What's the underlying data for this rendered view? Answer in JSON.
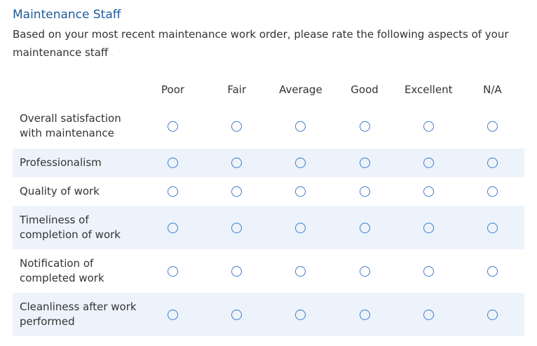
{
  "question": {
    "title": "Maintenance Staff",
    "intro": "Based on your most recent maintenance work order, please rate the following aspects of your maintenance staff",
    "intro_mark": "."
  },
  "columns": [
    "Poor",
    "Fair",
    "Average",
    "Good",
    "Excellent",
    "N/A"
  ],
  "rows": [
    {
      "label": "Overall satisfaction with maintenance"
    },
    {
      "label": "Professionalism"
    },
    {
      "label": "Quality of work"
    },
    {
      "label": "Timeliness of completion of work"
    },
    {
      "label": "Notification of completed work"
    },
    {
      "label": "Cleanliness after work performed"
    }
  ],
  "colors": {
    "title": "#1f5a99",
    "radio_border": "#3f7bc4",
    "alt_row": "#edf3fb"
  }
}
